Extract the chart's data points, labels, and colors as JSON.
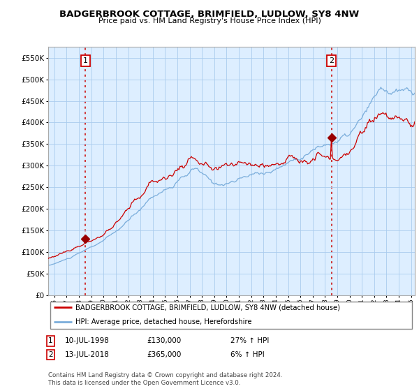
{
  "title": "BADGERBROOK COTTAGE, BRIMFIELD, LUDLOW, SY8 4NW",
  "subtitle": "Price paid vs. HM Land Registry's House Price Index (HPI)",
  "property_label": "BADGERBROOK COTTAGE, BRIMFIELD, LUDLOW, SY8 4NW (detached house)",
  "hpi_label": "HPI: Average price, detached house, Herefordshire",
  "sale1_date": "10-JUL-1998",
  "sale1_price": 130000,
  "sale1_hpi": "27% ↑ HPI",
  "sale2_date": "13-JUL-2018",
  "sale2_price": 365000,
  "sale2_hpi": "6% ↑ HPI",
  "copyright": "Contains HM Land Registry data © Crown copyright and database right 2024.\nThis data is licensed under the Open Government Licence v3.0.",
  "property_color": "#cc0000",
  "hpi_color": "#7aaddb",
  "chart_bg": "#ddeeff",
  "background_color": "#ffffff",
  "grid_color": "#aaccee",
  "ylim": [
    0,
    575000
  ],
  "yticks": [
    0,
    50000,
    100000,
    150000,
    200000,
    250000,
    300000,
    350000,
    400000,
    450000,
    500000,
    550000
  ],
  "ytick_labels": [
    "£0",
    "£50K",
    "£100K",
    "£150K",
    "£200K",
    "£250K",
    "£300K",
    "£350K",
    "£400K",
    "£450K",
    "£500K",
    "£550K"
  ],
  "sale1_year": 1998.53,
  "sale2_year": 2018.53,
  "marker_color": "#990000",
  "vline_color": "#cc0000",
  "xstart": 1995.5,
  "xend": 2025.3
}
